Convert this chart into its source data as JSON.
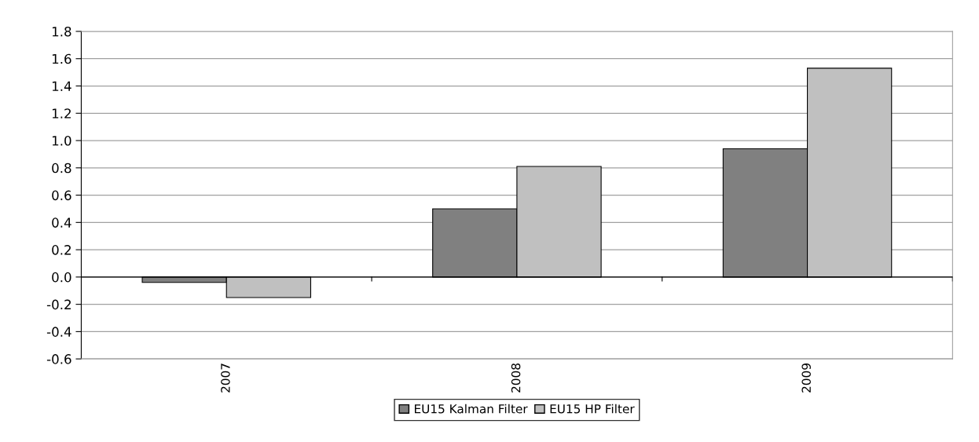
{
  "chart_data": {
    "type": "bar",
    "categories": [
      "2007",
      "2008",
      "2009"
    ],
    "series": [
      {
        "name": "EU15 Kalman Filter",
        "color": "#808080",
        "values": [
          -0.04,
          0.5,
          0.94
        ]
      },
      {
        "name": "EU15 HP Filter",
        "color": "#c0c0c0",
        "values": [
          -0.15,
          0.81,
          1.53
        ]
      }
    ],
    "ylim": [
      -0.6,
      1.8
    ],
    "yticks": [
      {
        "value": -0.6,
        "label": "-0.6"
      },
      {
        "value": -0.4,
        "label": "-0.4"
      },
      {
        "value": -0.2,
        "label": "-0.2"
      },
      {
        "value": 0,
        "label": "0.0"
      },
      {
        "value": 0.2,
        "label": "0.2"
      },
      {
        "value": 0.4,
        "label": "0.4"
      },
      {
        "value": 0.6,
        "label": "0.6"
      },
      {
        "value": 0.8,
        "label": "0.8"
      },
      {
        "value": 1.0,
        "label": "1.0"
      },
      {
        "value": 1.2,
        "label": "1.2"
      },
      {
        "value": 1.4,
        "label": "1.4"
      },
      {
        "value": 1.6,
        "label": "1.6"
      },
      {
        "value": 1.8,
        "label": "1.8"
      }
    ],
    "grid": "y",
    "legend": "bottom"
  }
}
